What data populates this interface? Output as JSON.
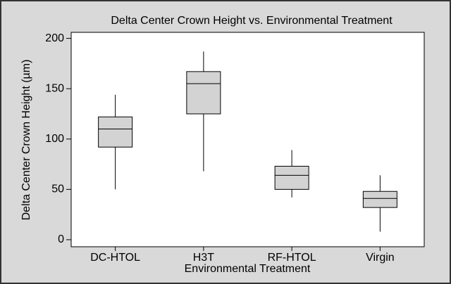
{
  "chart_data": {
    "type": "box",
    "title": "Delta Center Crown Height vs. Environmental Treatment",
    "x_label": "Environmental Treatment",
    "y_label": "Delta Center Crown Height (µm)",
    "categories": [
      "DC-HTOL",
      "H3T",
      "RF-HTOL",
      "Virgin"
    ],
    "min": [
      50,
      68,
      42,
      8
    ],
    "q1": [
      92,
      125,
      50,
      32
    ],
    "median": [
      110,
      155,
      64,
      41
    ],
    "q3": [
      122,
      167,
      73,
      48
    ],
    "max": [
      144,
      187,
      89,
      64
    ],
    "color": "#d3d3d3",
    "ylim": [
      -7,
      206
    ],
    "yticks": [
      0,
      50,
      100,
      150,
      200
    ]
  }
}
